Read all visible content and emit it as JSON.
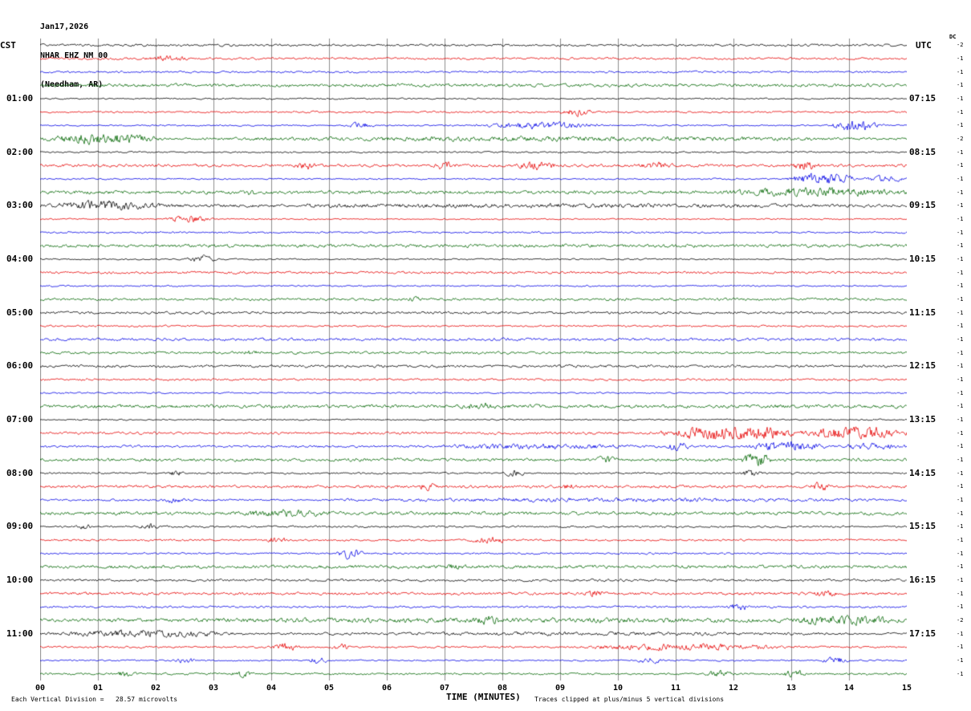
{
  "header": {
    "date": "Jan17,2026",
    "station": "NHAR EHZ NM 00",
    "location": "(Needham, AR)"
  },
  "axes": {
    "left_title": "CST",
    "right_title": "UTC",
    "dc_label": "DC",
    "x_title": "TIME (MINUTES)",
    "x_ticks": [
      "00",
      "01",
      "02",
      "03",
      "04",
      "05",
      "06",
      "07",
      "08",
      "09",
      "10",
      "11",
      "12",
      "13",
      "14",
      "15"
    ]
  },
  "footer": {
    "scale_note": "Each Vertical Division =   28.57 microvolts",
    "clip_note": "Traces clipped at plus/minus 5 vertical divisions"
  },
  "chart_data": {
    "type": "line",
    "kind": "seismogram-helicorder",
    "title": "NHAR EHZ NM 00 (Needham, AR) Jan17,2026",
    "x_range_minutes": [
      0,
      15
    ],
    "minutes_per_row": 15,
    "rows": 48,
    "rows_per_hour": 4,
    "trace_colors": [
      "#000000",
      "#e60000",
      "#0000e6",
      "#006600"
    ],
    "grid_color": "#8c8c8c",
    "microvolts_per_division": 28.57,
    "clip_divisions": 5,
    "left_hour_labels": [
      "01:00",
      "02:00",
      "03:00",
      "04:00",
      "05:00",
      "06:00",
      "07:00",
      "08:00",
      "09:00",
      "10:00",
      "11:00"
    ],
    "right_hour_labels": [
      "07:15",
      "08:15",
      "09:15",
      "10:15",
      "11:15",
      "12:15",
      "13:15",
      "14:15",
      "15:15",
      "16:15",
      "17:15"
    ],
    "right_trace_offsets": [
      "-2",
      "-1",
      "-1",
      "-1",
      "-1",
      "-1",
      "-1",
      "-2",
      "-1",
      "-1",
      "-1",
      "-1",
      "-1",
      "-1",
      "-1",
      "-1",
      "-1",
      "-1",
      "-1",
      "-1",
      "-1",
      "-1",
      "-1",
      "-1",
      "-1",
      "-1",
      "-1",
      "-1",
      "-1",
      "-1",
      "-1",
      "-1",
      "-1",
      "-1",
      "-1",
      "-1",
      "-1",
      "-1",
      "-1",
      "-1",
      "-1",
      "-1",
      "-1",
      "-2",
      "-1",
      "-1",
      "-1",
      "-1"
    ],
    "events": [
      [
        1,
        1.8,
        2.6,
        1.5
      ],
      [
        5,
        9.0,
        9.6,
        2.5
      ],
      [
        6,
        5.3,
        5.8,
        2.0
      ],
      [
        6,
        7.5,
        9.8,
        2.5
      ],
      [
        6,
        13.6,
        14.6,
        4.0
      ],
      [
        7,
        0.0,
        2.2,
        4.0
      ],
      [
        7,
        2.2,
        15.0,
        1.2
      ],
      [
        9,
        4.4,
        4.8,
        2.5
      ],
      [
        9,
        6.8,
        7.2,
        2.5
      ],
      [
        9,
        8.2,
        9.0,
        2.5
      ],
      [
        9,
        10.3,
        11.0,
        2.0
      ],
      [
        9,
        13.0,
        13.5,
        3.0
      ],
      [
        10,
        12.9,
        14.2,
        4.5
      ],
      [
        10,
        14.2,
        15.0,
        2.0
      ],
      [
        11,
        3.5,
        3.8,
        1.5
      ],
      [
        11,
        11.8,
        15.0,
        2.5
      ],
      [
        12,
        0.0,
        2.3,
        3.0
      ],
      [
        12,
        2.3,
        15.0,
        0.8
      ],
      [
        13,
        2.1,
        3.0,
        2.5
      ],
      [
        16,
        2.5,
        3.1,
        2.5
      ],
      [
        19,
        6.3,
        6.7,
        1.5
      ],
      [
        23,
        3.5,
        3.8,
        1.2
      ],
      [
        27,
        7.3,
        7.9,
        2.0
      ],
      [
        29,
        10.7,
        13.2,
        6.0
      ],
      [
        29,
        13.2,
        15.0,
        5.0
      ],
      [
        30,
        6.8,
        10.5,
        1.5
      ],
      [
        30,
        10.8,
        11.3,
        2.5
      ],
      [
        30,
        12.2,
        13.6,
        3.5
      ],
      [
        30,
        13.8,
        15.0,
        2.0
      ],
      [
        31,
        9.6,
        10.0,
        2.5
      ],
      [
        31,
        12.1,
        12.7,
        5.0
      ],
      [
        32,
        2.2,
        2.5,
        2.0
      ],
      [
        32,
        8.0,
        8.4,
        2.0
      ],
      [
        32,
        12.1,
        12.5,
        2.5
      ],
      [
        33,
        6.5,
        6.9,
        2.0
      ],
      [
        33,
        9.0,
        9.3,
        1.5
      ],
      [
        33,
        13.3,
        13.7,
        2.5
      ],
      [
        34,
        2.1,
        2.5,
        2.0
      ],
      [
        34,
        5.0,
        15.0,
        0.8
      ],
      [
        35,
        3.3,
        5.2,
        1.5
      ],
      [
        36,
        0.6,
        0.9,
        2.0
      ],
      [
        36,
        1.7,
        2.1,
        2.0
      ],
      [
        37,
        3.9,
        4.3,
        2.5
      ],
      [
        37,
        7.4,
        8.1,
        2.5
      ],
      [
        38,
        5.1,
        5.6,
        3.5
      ],
      [
        39,
        7.0,
        7.4,
        1.5
      ],
      [
        41,
        9.4,
        9.8,
        2.0
      ],
      [
        41,
        13.4,
        13.8,
        2.0
      ],
      [
        42,
        11.9,
        12.3,
        2.5
      ],
      [
        43,
        0.0,
        15.0,
        0.8
      ],
      [
        43,
        7.5,
        8.0,
        2.0
      ],
      [
        43,
        12.8,
        15.0,
        2.5
      ],
      [
        44,
        0.0,
        3.6,
        2.5
      ],
      [
        44,
        3.6,
        15.0,
        0.8
      ],
      [
        45,
        4.0,
        4.5,
        2.5
      ],
      [
        45,
        5.0,
        5.4,
        2.0
      ],
      [
        45,
        9.2,
        13.2,
        2.0
      ],
      [
        46,
        2.3,
        2.7,
        2.0
      ],
      [
        46,
        4.6,
        5.0,
        2.0
      ],
      [
        46,
        10.3,
        10.8,
        2.0
      ],
      [
        46,
        13.5,
        14.0,
        2.5
      ],
      [
        47,
        1.3,
        1.7,
        2.0
      ],
      [
        47,
        3.3,
        3.7,
        2.0
      ],
      [
        47,
        11.5,
        12.0,
        2.0
      ],
      [
        47,
        12.8,
        13.3,
        2.5
      ]
    ]
  }
}
